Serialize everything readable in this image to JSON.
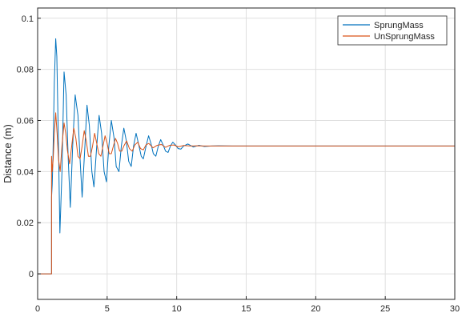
{
  "chart_data": {
    "type": "line",
    "title": "",
    "xlabel": "",
    "ylabel": "Distance (m)",
    "xlim": [
      0,
      30
    ],
    "ylim": [
      -0.01,
      0.104
    ],
    "x_ticks": [
      0,
      5,
      10,
      15,
      20,
      25,
      30
    ],
    "x_tick_labels": [
      "0",
      "5",
      "10",
      "15",
      "20",
      "25",
      "30"
    ],
    "y_ticks": [
      0,
      0.02,
      0.04,
      0.06,
      0.08,
      0.1
    ],
    "y_tick_labels": [
      "0",
      "0.02",
      "0.04",
      "0.06",
      "0.08",
      "0.1"
    ],
    "grid": true,
    "legend_position": "top-right",
    "colors": {
      "sprung": "#0072BD",
      "unsprung": "#D95319",
      "grid": "#dfdfdf",
      "axes": "#262626"
    },
    "series": [
      {
        "name": "SprungMass",
        "color": "#0072BD",
        "x": [
          0,
          1.0,
          1.0,
          1.05,
          1.1,
          1.2,
          1.3,
          1.38,
          1.5,
          1.6,
          1.75,
          1.9,
          2.05,
          2.2,
          2.35,
          2.52,
          2.7,
          2.9,
          3.05,
          3.2,
          3.4,
          3.55,
          3.72,
          3.9,
          4.05,
          4.25,
          4.42,
          4.6,
          4.78,
          4.95,
          5.12,
          5.3,
          5.5,
          5.65,
          5.85,
          6.02,
          6.2,
          6.38,
          6.55,
          6.73,
          6.9,
          7.08,
          7.25,
          7.45,
          7.6,
          7.8,
          7.98,
          8.15,
          8.32,
          8.5,
          8.68,
          8.85,
          9.02,
          9.2,
          9.38,
          9.55,
          9.72,
          9.9,
          10.1,
          10.3,
          10.5,
          10.8,
          11.2,
          11.6,
          12,
          12.5,
          13,
          14,
          15,
          16,
          18,
          20,
          22,
          24,
          26,
          28,
          30
        ],
        "y": [
          0,
          0,
          0.03,
          0.035,
          0.045,
          0.075,
          0.092,
          0.085,
          0.05,
          0.016,
          0.04,
          0.079,
          0.07,
          0.045,
          0.026,
          0.05,
          0.07,
          0.062,
          0.045,
          0.03,
          0.05,
          0.066,
          0.058,
          0.04,
          0.034,
          0.05,
          0.062,
          0.055,
          0.04,
          0.036,
          0.05,
          0.06,
          0.053,
          0.042,
          0.04,
          0.05,
          0.057,
          0.052,
          0.044,
          0.042,
          0.05,
          0.055,
          0.051,
          0.046,
          0.045,
          0.05,
          0.054,
          0.051,
          0.047,
          0.046,
          0.05,
          0.0525,
          0.0505,
          0.048,
          0.0475,
          0.05,
          0.0515,
          0.0505,
          0.049,
          0.0488,
          0.05,
          0.0508,
          0.0496,
          0.0503,
          0.0498,
          0.05,
          0.0501,
          0.05,
          0.05,
          0.05,
          0.05,
          0.05,
          0.05,
          0.05,
          0.05,
          0.05,
          0.05
        ]
      },
      {
        "name": "UnSprungMass",
        "color": "#D95319",
        "x": [
          0,
          1.0,
          1.0,
          1.05,
          1.12,
          1.2,
          1.3,
          1.4,
          1.5,
          1.62,
          1.75,
          1.9,
          2.02,
          2.15,
          2.3,
          2.45,
          2.6,
          2.75,
          2.9,
          3.05,
          3.2,
          3.35,
          3.5,
          3.65,
          3.8,
          3.95,
          4.1,
          4.25,
          4.4,
          4.55,
          4.7,
          4.85,
          5.0,
          5.15,
          5.3,
          5.45,
          5.6,
          5.75,
          5.9,
          6.05,
          6.2,
          6.4,
          6.6,
          6.8,
          7.0,
          7.2,
          7.4,
          7.6,
          7.8,
          8.0,
          8.3,
          8.6,
          8.9,
          9.2,
          9.5,
          9.8,
          10.1,
          10.5,
          11,
          11.5,
          12,
          13,
          14,
          15,
          16,
          18,
          20,
          22,
          24,
          26,
          28,
          30
        ],
        "y": [
          0,
          0,
          0.046,
          0.04,
          0.045,
          0.055,
          0.063,
          0.055,
          0.045,
          0.04,
          0.05,
          0.059,
          0.055,
          0.048,
          0.043,
          0.05,
          0.057,
          0.053,
          0.046,
          0.045,
          0.05,
          0.056,
          0.052,
          0.046,
          0.046,
          0.05,
          0.055,
          0.051,
          0.047,
          0.046,
          0.05,
          0.054,
          0.051,
          0.047,
          0.047,
          0.05,
          0.053,
          0.051,
          0.048,
          0.048,
          0.05,
          0.052,
          0.049,
          0.048,
          0.0505,
          0.0515,
          0.049,
          0.0485,
          0.0505,
          0.051,
          0.0493,
          0.0503,
          0.0506,
          0.0495,
          0.0503,
          0.0504,
          0.0497,
          0.0502,
          0.05,
          0.0501,
          0.05,
          0.05,
          0.05,
          0.05,
          0.05,
          0.05,
          0.05,
          0.05,
          0.05,
          0.05,
          0.05,
          0.05
        ]
      }
    ]
  }
}
